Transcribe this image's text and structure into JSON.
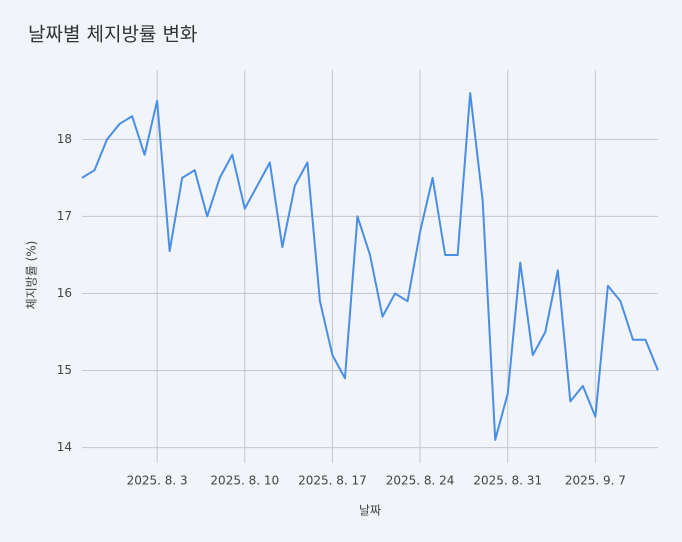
{
  "chart_data": {
    "type": "line",
    "title": "날짜별 체지방률 변화",
    "x_label": "날짜",
    "y_label": "체지방률 (%)",
    "x": [
      "2025-07-28",
      "2025-07-29",
      "2025-07-30",
      "2025-07-31",
      "2025-08-01",
      "2025-08-02",
      "2025-08-03",
      "2025-08-04",
      "2025-08-05",
      "2025-08-06",
      "2025-08-07",
      "2025-08-08",
      "2025-08-09",
      "2025-08-10",
      "2025-08-11",
      "2025-08-12",
      "2025-08-13",
      "2025-08-14",
      "2025-08-15",
      "2025-08-16",
      "2025-08-17",
      "2025-08-18",
      "2025-08-19",
      "2025-08-20",
      "2025-08-21",
      "2025-08-22",
      "2025-08-23",
      "2025-08-24",
      "2025-08-25",
      "2025-08-26",
      "2025-08-27",
      "2025-08-28",
      "2025-08-29",
      "2025-08-30",
      "2025-08-31",
      "2025-09-01",
      "2025-09-02",
      "2025-09-03",
      "2025-09-04",
      "2025-09-05",
      "2025-09-06",
      "2025-09-07",
      "2025-09-08",
      "2025-09-09",
      "2025-09-10",
      "2025-09-11",
      "2025-09-12"
    ],
    "series": [
      {
        "name": "체지방률",
        "color": "#4a8fe7",
        "values": [
          17.5,
          17.6,
          18.0,
          18.2,
          18.3,
          17.8,
          18.5,
          16.55,
          17.5,
          17.6,
          17.0,
          17.5,
          17.8,
          17.1,
          17.4,
          17.7,
          16.6,
          17.4,
          17.7,
          15.9,
          15.2,
          14.9,
          17.0,
          16.5,
          15.7,
          16.0,
          15.9,
          16.8,
          17.5,
          16.5,
          16.5,
          18.6,
          17.2,
          14.1,
          14.7,
          16.4,
          15.2,
          15.5,
          16.3,
          14.6,
          14.8,
          14.4,
          16.1,
          15.9,
          15.4,
          15.4,
          15.0
        ]
      }
    ],
    "xlim": [
      "2025-07-28",
      "2025-09-12"
    ],
    "xticks": [
      {
        "value": "2025-08-03",
        "label": "2025. 8. 3"
      },
      {
        "value": "2025-08-10",
        "label": "2025. 8. 10"
      },
      {
        "value": "2025-08-17",
        "label": "2025. 8. 17"
      },
      {
        "value": "2025-08-24",
        "label": "2025. 8. 24"
      },
      {
        "value": "2025-08-31",
        "label": "2025. 8. 31"
      },
      {
        "value": "2025-09-07",
        "label": "2025. 9. 7"
      }
    ],
    "ylim": [
      13.8,
      18.9
    ],
    "yticks": [
      14,
      15,
      16,
      17,
      18
    ],
    "grid": true
  }
}
